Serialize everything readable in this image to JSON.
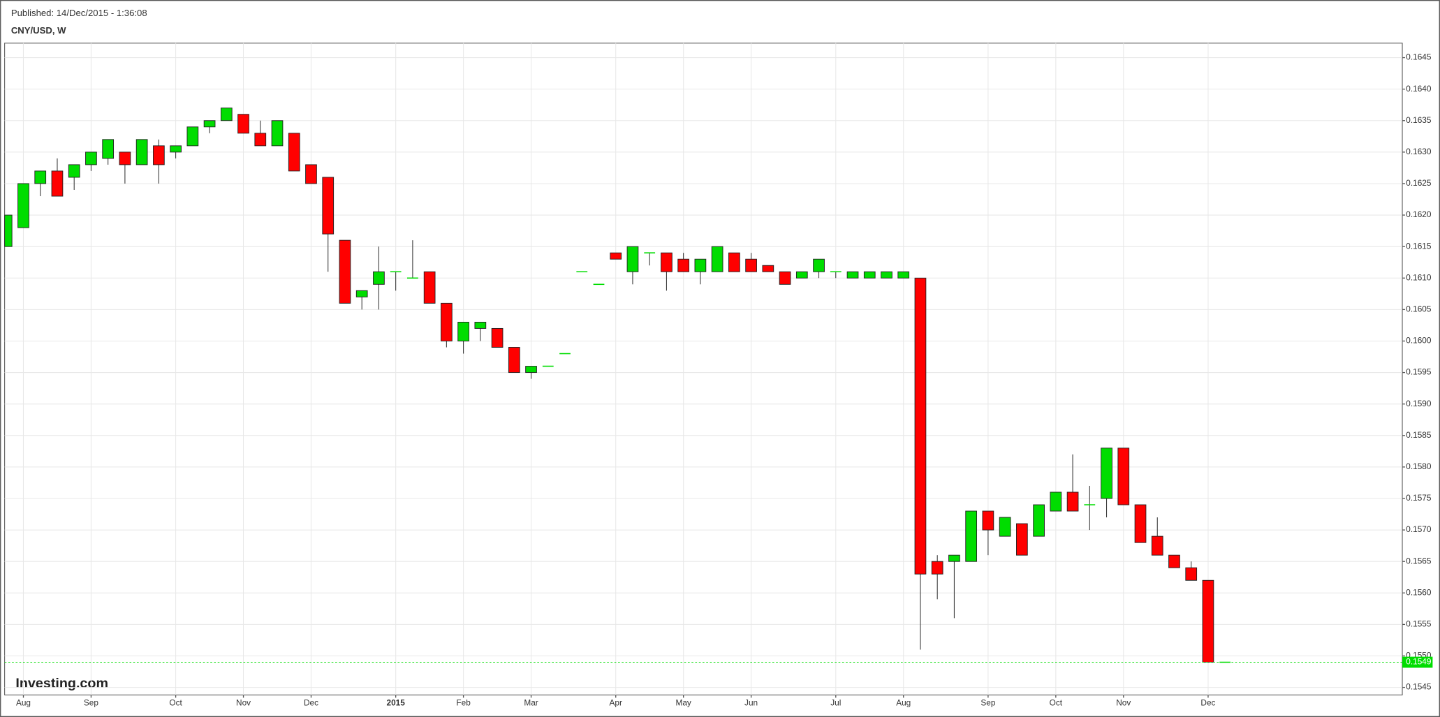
{
  "chart_data": {
    "type": "candlestick",
    "published": "Published: 14/Dec/2015 - 1:36:08",
    "title": "CNY/USD, W",
    "brand": "Investing.com",
    "categories": [
      null,
      "Aug",
      null,
      null,
      null,
      "Sep",
      null,
      null,
      null,
      null,
      "Oct",
      null,
      null,
      null,
      "Nov",
      null,
      null,
      null,
      "Dec",
      null,
      null,
      null,
      null,
      "2015",
      null,
      null,
      null,
      "Feb",
      null,
      null,
      null,
      "Mar",
      null,
      null,
      null,
      null,
      "Apr",
      null,
      null,
      null,
      "May",
      null,
      null,
      null,
      "Jun",
      null,
      null,
      null,
      null,
      "Jul",
      null,
      null,
      null,
      "Aug",
      null,
      null,
      null,
      null,
      "Sep",
      null,
      null,
      null,
      "Oct",
      null,
      null,
      null,
      "Nov",
      null,
      null,
      null,
      null,
      "Dec",
      null
    ],
    "open": [
      0.1615,
      0.1618,
      0.1625,
      0.1627,
      0.1626,
      0.1628,
      0.1629,
      0.163,
      0.1628,
      0.1631,
      0.163,
      0.1631,
      0.1634,
      0.1635,
      0.1636,
      0.1633,
      0.1631,
      0.1633,
      0.1628,
      0.1626,
      0.1616,
      0.1607,
      0.1609,
      0.1611,
      0.161,
      0.1611,
      0.1606,
      0.16,
      0.1602,
      0.1602,
      0.1599,
      0.1595,
      0.1596,
      0.1598,
      0.1611,
      0.1609,
      0.1614,
      0.1611,
      0.1614,
      0.1614,
      0.1613,
      0.1611,
      0.1611,
      0.1614,
      0.1613,
      0.1612,
      0.1611,
      0.161,
      0.1611,
      0.1611,
      0.161,
      0.161,
      0.161,
      0.161,
      0.161,
      0.1565,
      0.1565,
      0.1565,
      0.1573,
      0.1569,
      0.1571,
      0.1569,
      0.1573,
      0.1576,
      0.1574,
      0.1575,
      0.1583,
      0.1574,
      0.1569,
      0.1566,
      0.1564,
      0.1562,
      0.1549
    ],
    "high": [
      0.162,
      0.1625,
      0.1627,
      0.1629,
      0.1628,
      0.163,
      0.1632,
      0.163,
      0.1632,
      0.1632,
      0.1631,
      0.1634,
      0.1635,
      0.1637,
      0.1636,
      0.1635,
      0.1635,
      0.1633,
      0.1628,
      0.1626,
      0.1616,
      0.1608,
      0.1615,
      0.1611,
      0.1616,
      0.1611,
      0.1606,
      0.1603,
      0.1603,
      0.1602,
      0.1599,
      0.1596,
      0.1596,
      0.1598,
      0.1611,
      0.1609,
      0.1614,
      0.1615,
      0.1614,
      0.1614,
      0.1614,
      0.1613,
      0.1615,
      0.1614,
      0.1614,
      0.1612,
      0.1611,
      0.1611,
      0.1613,
      0.1611,
      0.1611,
      0.1611,
      0.1611,
      0.1611,
      0.161,
      0.1566,
      0.1566,
      0.1573,
      0.1573,
      0.1572,
      0.1571,
      0.1574,
      0.1576,
      0.1582,
      0.1577,
      0.1583,
      0.1583,
      0.1574,
      0.1572,
      0.1566,
      0.1565,
      0.1562,
      0.1549
    ],
    "low": [
      0.1615,
      0.1618,
      0.1623,
      0.1623,
      0.1624,
      0.1627,
      0.1628,
      0.1625,
      0.1628,
      0.1625,
      0.1629,
      0.1631,
      0.1633,
      0.1635,
      0.1633,
      0.1631,
      0.1631,
      0.1627,
      0.1625,
      0.1611,
      0.1606,
      0.1605,
      0.1605,
      0.1608,
      0.161,
      0.1606,
      0.1599,
      0.1598,
      0.16,
      0.1599,
      0.1595,
      0.1594,
      0.1596,
      0.1598,
      0.1611,
      0.1609,
      0.1613,
      0.1609,
      0.1612,
      0.1608,
      0.1611,
      0.1609,
      0.1611,
      0.1611,
      0.1611,
      0.1611,
      0.1609,
      0.161,
      0.161,
      0.161,
      0.161,
      0.161,
      0.161,
      0.161,
      0.1551,
      0.1559,
      0.1556,
      0.1565,
      0.1566,
      0.1569,
      0.1566,
      0.1569,
      0.1573,
      0.1573,
      0.157,
      0.1572,
      0.1574,
      0.1568,
      0.1566,
      0.1564,
      0.1562,
      0.1549,
      0.1549
    ],
    "close": [
      0.162,
      0.1625,
      0.1627,
      0.1623,
      0.1628,
      0.163,
      0.1632,
      0.1628,
      0.1632,
      0.1628,
      0.1631,
      0.1634,
      0.1635,
      0.1637,
      0.1633,
      0.1631,
      0.1635,
      0.1627,
      0.1625,
      0.1617,
      0.1606,
      0.1608,
      0.1611,
      0.1611,
      0.161,
      0.1606,
      0.16,
      0.1603,
      0.1603,
      0.1599,
      0.1595,
      0.1596,
      0.1596,
      0.1598,
      0.1611,
      0.1609,
      0.1613,
      0.1615,
      0.1614,
      0.1611,
      0.1611,
      0.1613,
      0.1615,
      0.1611,
      0.1611,
      0.1611,
      0.1609,
      0.1611,
      0.1613,
      0.1611,
      0.1611,
      0.1611,
      0.1611,
      0.1611,
      0.1563,
      0.1563,
      0.1566,
      0.1573,
      0.157,
      0.1572,
      0.1566,
      0.1574,
      0.1576,
      0.1573,
      0.1574,
      0.1583,
      0.1574,
      0.1568,
      0.1566,
      0.1564,
      0.1562,
      0.1549,
      0.1549
    ],
    "up_color": "#00dd00",
    "down_color": "#ff0000",
    "last_price": 0.1549,
    "ylim": [
      0.15438,
      0.16473
    ],
    "yticks": [
      0.1545,
      {
        "value": 0.155,
        "label": "0.1550"
      },
      0.1555,
      {
        "value": 0.156,
        "label": "0.1560"
      },
      0.1565,
      {
        "value": 0.157,
        "label": "0.1570"
      },
      0.1575,
      {
        "value": 0.158,
        "label": "0.1580"
      },
      0.1585,
      {
        "value": 0.159,
        "label": "0.1590"
      },
      0.1595,
      {
        "value": 0.16,
        "label": "0.1600"
      },
      0.1605,
      {
        "value": 0.161,
        "label": "0.1610"
      },
      0.1615,
      {
        "value": 0.162,
        "label": "0.1620"
      },
      0.1625,
      {
        "value": 0.163,
        "label": "0.1630"
      },
      0.1635,
      {
        "value": 0.164,
        "label": "0.1640"
      },
      0.1645
    ],
    "grid": true
  }
}
